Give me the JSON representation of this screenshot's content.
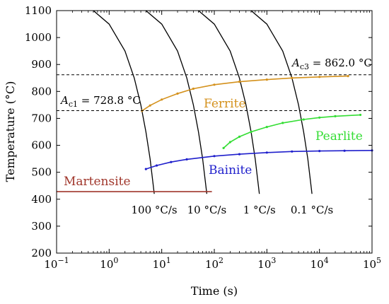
{
  "chart_data": {
    "type": "line",
    "xlabel": "Time (s)",
    "ylabel": "Temperature (°C)",
    "xscale": "log",
    "xlim": [
      0.1,
      100000
    ],
    "ylim": [
      200,
      1100
    ],
    "x_ticks": [
      {
        "value": 0.1,
        "base": "10",
        "exp": "−1"
      },
      {
        "value": 1,
        "base": "10",
        "exp": "0"
      },
      {
        "value": 10,
        "base": "10",
        "exp": "1"
      },
      {
        "value": 100,
        "base": "10",
        "exp": "2"
      },
      {
        "value": 1000,
        "base": "10",
        "exp": "3"
      },
      {
        "value": 10000,
        "base": "10",
        "exp": "4"
      },
      {
        "value": 100000,
        "base": "10",
        "exp": "5"
      }
    ],
    "y_ticks": [
      200,
      300,
      400,
      500,
      600,
      700,
      800,
      900,
      1000,
      1100
    ],
    "reference_lines": [
      {
        "y": 862.0,
        "style": "dashed",
        "prefix": "A",
        "sub": "c3",
        "suffix": " = 862.0 °C"
      },
      {
        "y": 728.8,
        "style": "dashed",
        "prefix": "A",
        "sub": "c1",
        "suffix": " = 728.8 °C"
      }
    ],
    "phase_curves": [
      {
        "name": "Ferrite",
        "color": "#d4911c",
        "x": [
          4.2,
          6,
          10,
          20,
          40,
          100,
          300,
          1000,
          3000,
          10000,
          35000
        ],
        "y": [
          728,
          748,
          770,
          792,
          810,
          825,
          836,
          844,
          850,
          854,
          857
        ]
      },
      {
        "name": "Pearlite",
        "color": "#33dd33",
        "x": [
          150,
          200,
          300,
          500,
          1000,
          2000,
          5000,
          10000,
          20000,
          60000
        ],
        "y": [
          590,
          612,
          632,
          650,
          668,
          683,
          696,
          703,
          708,
          713
        ]
      },
      {
        "name": "Bainite",
        "color": "#1f1fcc",
        "x": [
          5,
          8,
          15,
          30,
          100,
          300,
          1000,
          3000,
          10000,
          30000,
          100000
        ],
        "y": [
          512,
          525,
          538,
          548,
          560,
          567,
          573,
          577,
          579,
          580,
          581
        ]
      },
      {
        "name": "Martensite",
        "color": "#a0362b",
        "x": [
          0.1,
          90
        ],
        "y": [
          428,
          428
        ]
      }
    ],
    "cooling_curves": [
      {
        "label": "100 °C/s",
        "x": [
          0.5,
          1,
          2,
          3,
          4,
          5,
          6,
          7.2
        ],
        "y": [
          1100,
          1050,
          950,
          850,
          750,
          650,
          550,
          420
        ]
      },
      {
        "label": "10 °C/s",
        "x": [
          5,
          10,
          20,
          30,
          40,
          50,
          60,
          72
        ],
        "y": [
          1100,
          1050,
          950,
          850,
          750,
          650,
          550,
          420
        ]
      },
      {
        "label": "1 °C/s",
        "x": [
          50,
          100,
          200,
          300,
          400,
          500,
          600,
          720
        ],
        "y": [
          1100,
          1050,
          950,
          850,
          750,
          650,
          550,
          420
        ]
      },
      {
        "label": "0.1 °C/s",
        "x": [
          500,
          1000,
          2000,
          3000,
          4000,
          5000,
          6000,
          7200
        ],
        "y": [
          1100,
          1050,
          950,
          850,
          750,
          650,
          550,
          420
        ]
      }
    ]
  }
}
